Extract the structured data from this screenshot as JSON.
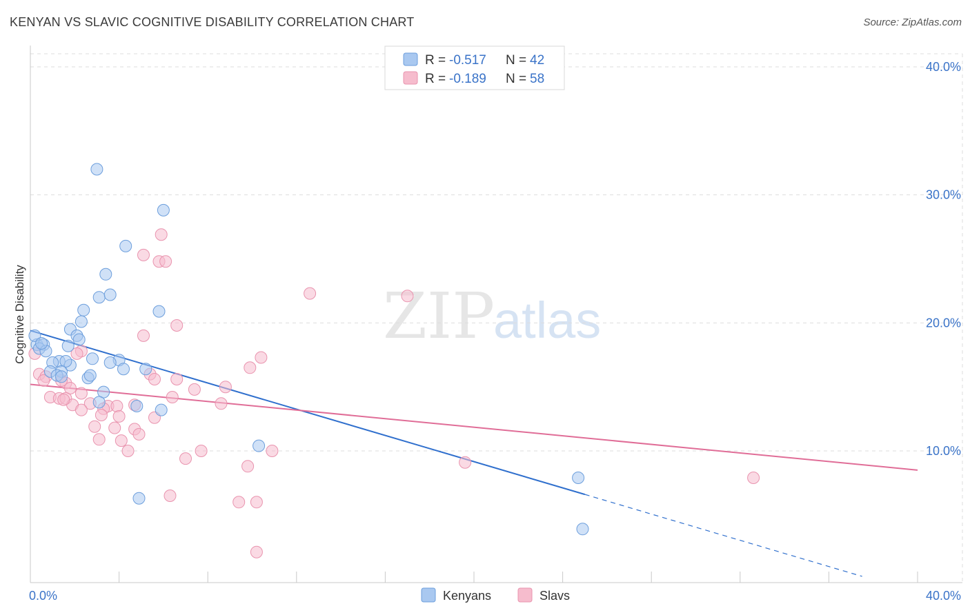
{
  "title": "KENYAN VS SLAVIC COGNITIVE DISABILITY CORRELATION CHART",
  "source": "Source: ZipAtlas.com",
  "watermark": {
    "zip": "ZIP",
    "atlas": "atlas"
  },
  "colors": {
    "kenyans_fill": "#a9c8f0",
    "kenyans_stroke": "#6c9edc",
    "kenyans_line": "#2f6fcd",
    "slavs_fill": "#f6bccd",
    "slavs_stroke": "#e993ae",
    "slavs_line": "#e06d97",
    "grid": "#dddddd",
    "tick_text": "#3a73c8"
  },
  "legend": {
    "rows": [
      {
        "r_label": "R = ",
        "r_value": "-0.517",
        "n_label": "N = ",
        "n_value": "42"
      },
      {
        "r_label": "R = ",
        "r_value": "-0.189",
        "n_label": "N = ",
        "n_value": "58"
      }
    ]
  },
  "chart_data": {
    "type": "scatter",
    "title": "KENYAN VS SLAVIC COGNITIVE DISABILITY CORRELATION CHART",
    "xlabel": "",
    "ylabel": "Cognitive Disability",
    "xlim": [
      0,
      40
    ],
    "ylim": [
      0,
      40
    ],
    "x_tick_labels": [
      "0.0%",
      "40.0%"
    ],
    "y_ticks": [
      10,
      20,
      30,
      40
    ],
    "y_tick_labels": [
      "10.0%",
      "20.0%",
      "30.0%",
      "40.0%"
    ],
    "grid": true,
    "legend_position": "bottom",
    "series": [
      {
        "name": "Kenyans",
        "r": -0.517,
        "n": 42,
        "trend": {
          "x0": 0,
          "y0": 19.4,
          "x1": 25.0,
          "y1": 6.6,
          "dash_to_x": 37.5,
          "dash_to_y": 0.2
        },
        "points": [
          [
            3.0,
            32.0
          ],
          [
            6.0,
            28.8
          ],
          [
            4.3,
            26.0
          ],
          [
            3.4,
            23.8
          ],
          [
            3.1,
            22.0
          ],
          [
            3.6,
            22.2
          ],
          [
            2.4,
            21.0
          ],
          [
            5.8,
            20.9
          ],
          [
            2.3,
            20.1
          ],
          [
            1.8,
            19.5
          ],
          [
            2.1,
            19.0
          ],
          [
            2.2,
            18.7
          ],
          [
            0.3,
            18.3
          ],
          [
            0.6,
            18.3
          ],
          [
            0.4,
            18.0
          ],
          [
            0.7,
            17.8
          ],
          [
            1.7,
            18.2
          ],
          [
            2.8,
            17.2
          ],
          [
            4.0,
            17.1
          ],
          [
            1.3,
            17.0
          ],
          [
            1.8,
            16.7
          ],
          [
            1.6,
            17.0
          ],
          [
            1.0,
            16.9
          ],
          [
            3.6,
            16.9
          ],
          [
            4.2,
            16.4
          ],
          [
            5.2,
            16.4
          ],
          [
            0.9,
            16.2
          ],
          [
            1.4,
            16.2
          ],
          [
            1.2,
            15.9
          ],
          [
            1.4,
            15.8
          ],
          [
            2.6,
            15.7
          ],
          [
            2.7,
            15.9
          ],
          [
            3.3,
            14.6
          ],
          [
            3.1,
            13.8
          ],
          [
            4.8,
            13.5
          ],
          [
            5.9,
            13.2
          ],
          [
            10.3,
            10.4
          ],
          [
            4.9,
            6.3
          ],
          [
            24.7,
            7.9
          ],
          [
            24.9,
            3.9
          ],
          [
            0.2,
            19.0
          ],
          [
            0.5,
            18.4
          ]
        ]
      },
      {
        "name": "Slavs",
        "r": -0.189,
        "n": 58,
        "trend": {
          "x0": 0,
          "y0": 15.2,
          "x1": 40.0,
          "y1": 8.5
        },
        "points": [
          [
            5.9,
            26.9
          ],
          [
            5.1,
            25.3
          ],
          [
            5.8,
            24.8
          ],
          [
            6.1,
            24.8
          ],
          [
            12.6,
            22.3
          ],
          [
            17.0,
            22.1
          ],
          [
            6.6,
            19.8
          ],
          [
            5.1,
            19.0
          ],
          [
            2.3,
            17.8
          ],
          [
            10.4,
            17.3
          ],
          [
            9.9,
            16.5
          ],
          [
            2.1,
            17.6
          ],
          [
            0.2,
            17.6
          ],
          [
            0.4,
            16.0
          ],
          [
            0.7,
            15.8
          ],
          [
            5.4,
            16.0
          ],
          [
            5.6,
            15.6
          ],
          [
            6.6,
            15.6
          ],
          [
            8.8,
            15.0
          ],
          [
            7.4,
            14.8
          ],
          [
            0.6,
            15.5
          ],
          [
            1.6,
            15.3
          ],
          [
            1.4,
            15.5
          ],
          [
            1.8,
            14.9
          ],
          [
            2.3,
            14.5
          ],
          [
            6.4,
            14.2
          ],
          [
            0.9,
            14.2
          ],
          [
            1.3,
            14.1
          ],
          [
            1.6,
            14.1
          ],
          [
            8.6,
            13.7
          ],
          [
            2.7,
            13.7
          ],
          [
            3.5,
            13.5
          ],
          [
            3.9,
            13.5
          ],
          [
            4.7,
            13.6
          ],
          [
            1.9,
            13.6
          ],
          [
            2.3,
            13.2
          ],
          [
            3.3,
            13.3
          ],
          [
            3.2,
            12.8
          ],
          [
            4.0,
            12.7
          ],
          [
            5.6,
            12.6
          ],
          [
            2.9,
            11.9
          ],
          [
            3.8,
            11.8
          ],
          [
            4.7,
            11.7
          ],
          [
            4.9,
            11.3
          ],
          [
            3.1,
            10.9
          ],
          [
            4.1,
            10.8
          ],
          [
            4.4,
            10.0
          ],
          [
            7.7,
            10.0
          ],
          [
            10.9,
            10.0
          ],
          [
            7.0,
            9.4
          ],
          [
            19.6,
            9.1
          ],
          [
            9.8,
            8.8
          ],
          [
            32.6,
            7.9
          ],
          [
            6.3,
            6.5
          ],
          [
            9.4,
            6.0
          ],
          [
            10.2,
            6.0
          ],
          [
            10.2,
            2.1
          ],
          [
            1.5,
            14.0
          ]
        ]
      }
    ]
  },
  "bottom_legend": {
    "items": [
      "Kenyans",
      "Slavs"
    ]
  }
}
